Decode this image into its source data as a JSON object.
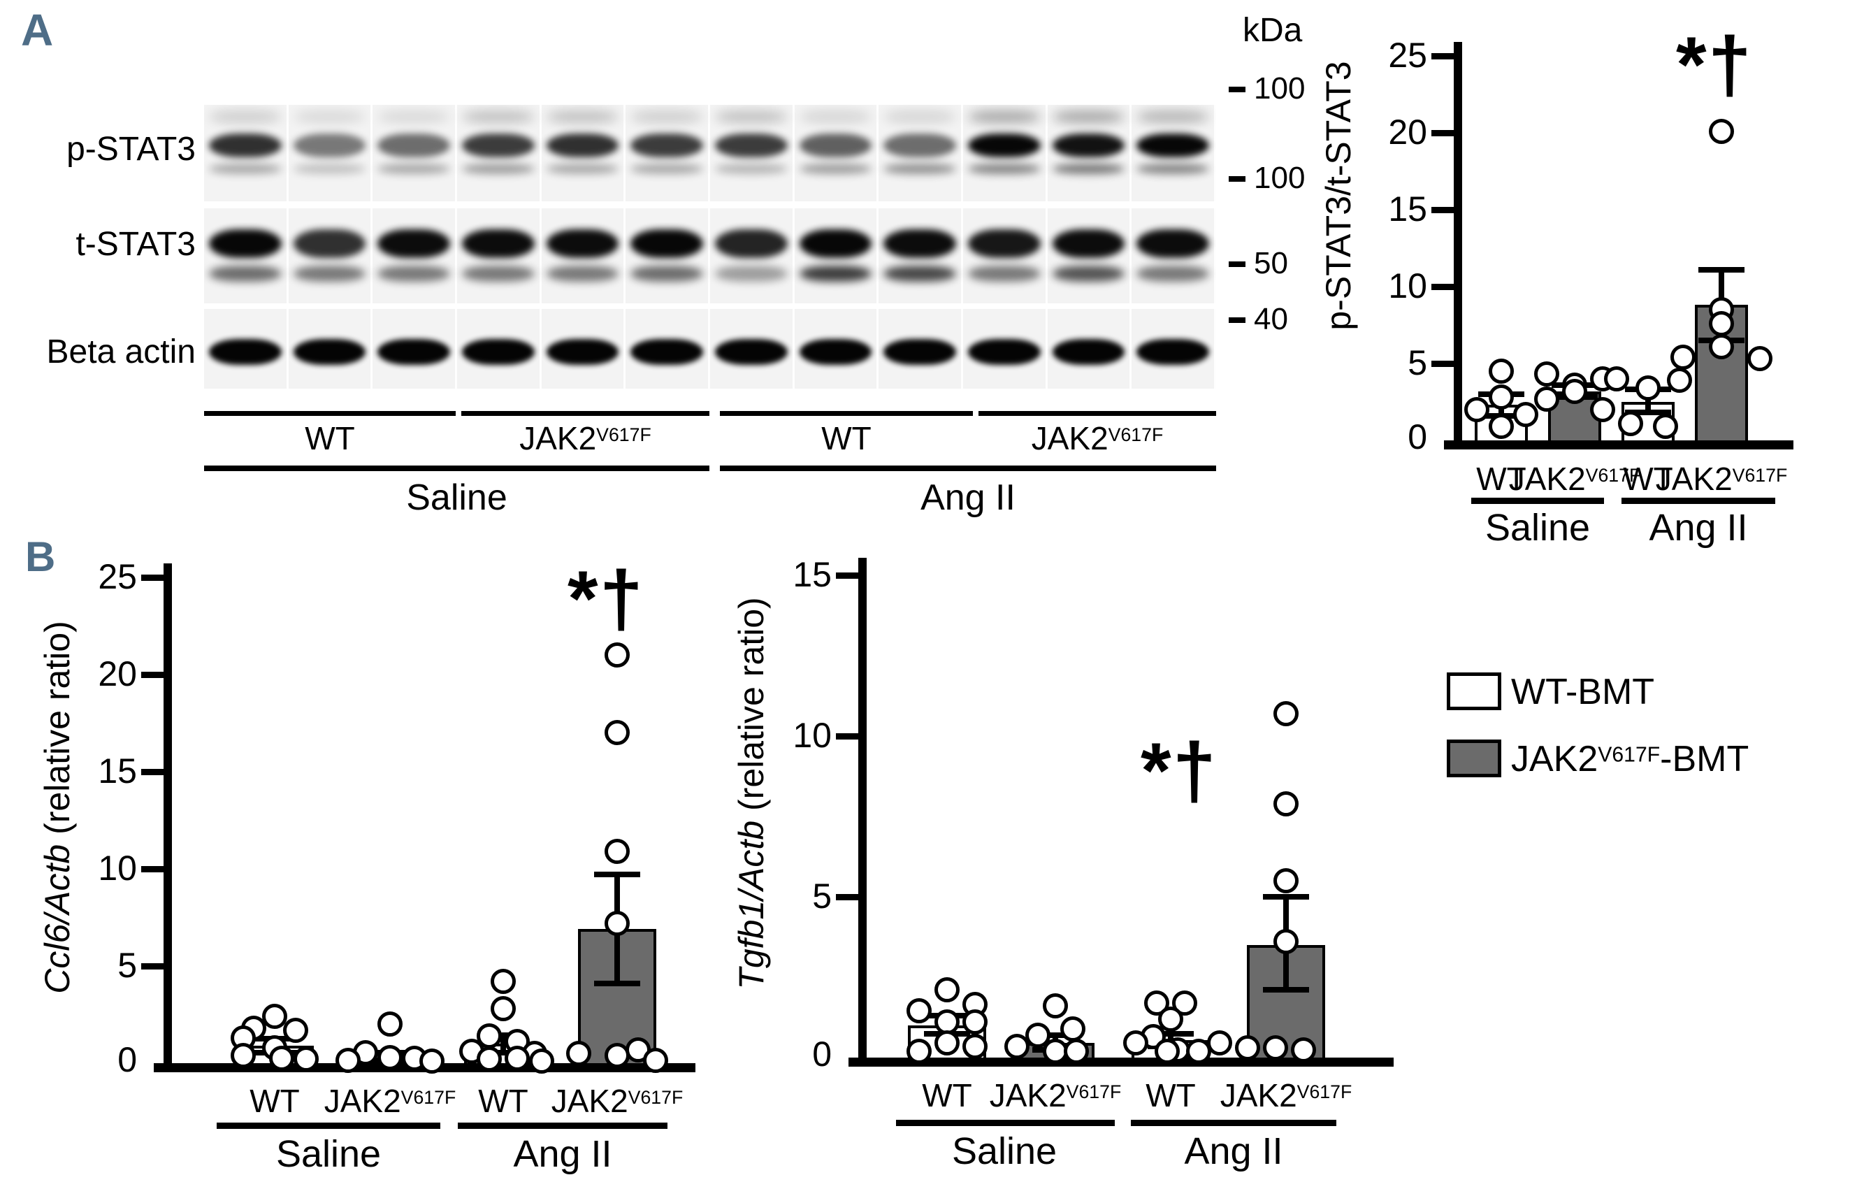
{
  "panel_a_label": "A",
  "panel_b_label": "B",
  "colors": {
    "bar_gray": "#6b6b6b",
    "bar_white": "#ffffff",
    "panel_letter": "#4e6d87"
  },
  "blot": {
    "row_labels": [
      "p-STAT3",
      "t-STAT3",
      "Beta actin"
    ],
    "kda_header": "kDa",
    "kda_markers": [
      "100",
      "100",
      "50",
      "40"
    ],
    "lane_group_labels": [
      {
        "pre": "WT",
        "sup": ""
      },
      {
        "pre": "JAK2",
        "sup": "V617F"
      },
      {
        "pre": "WT",
        "sup": ""
      },
      {
        "pre": "JAK2",
        "sup": "V617F"
      }
    ],
    "condition_labels": [
      "Saline",
      "Ang II"
    ],
    "strips": [
      {
        "label": "p-STAT3",
        "bands": {
          "smear": [
            0.15,
            0.1,
            0.1,
            0.2,
            0.2,
            0.15,
            0.2,
            0.12,
            0.12,
            0.3,
            0.3,
            0.25
          ],
          "main": [
            0.8,
            0.5,
            0.55,
            0.75,
            0.8,
            0.75,
            0.75,
            0.6,
            0.55,
            0.97,
            0.92,
            0.97
          ],
          "sub": [
            0.3,
            0.2,
            0.3,
            0.35,
            0.3,
            0.3,
            0.25,
            0.35,
            0.4,
            0.45,
            0.5,
            0.45
          ]
        }
      },
      {
        "label": "t-STAT3",
        "bands": {
          "main": [
            0.97,
            0.8,
            0.95,
            0.95,
            0.95,
            0.97,
            0.85,
            0.97,
            0.95,
            0.9,
            0.95,
            0.95
          ],
          "sub": [
            0.55,
            0.5,
            0.5,
            0.5,
            0.5,
            0.55,
            0.35,
            0.75,
            0.7,
            0.5,
            0.65,
            0.5
          ]
        }
      },
      {
        "label": "Beta actin",
        "bands": {
          "main": [
            0.98,
            0.98,
            0.98,
            0.98,
            0.98,
            0.98,
            0.98,
            0.98,
            0.98,
            0.98,
            0.98,
            0.98
          ]
        }
      }
    ]
  },
  "chart_data": [
    {
      "type": "bar",
      "title": "",
      "ylabel_italic": "",
      "ylabel_rest": "p-STAT3/t-STAT3",
      "ylim": [
        0,
        25
      ],
      "yticks": [
        0,
        5,
        10,
        15,
        20,
        25
      ],
      "grid": false,
      "categories": [
        {
          "pre": "WT",
          "sup": ""
        },
        {
          "pre": "JAK2",
          "sup": "V617F"
        },
        {
          "pre": "WT",
          "sup": ""
        },
        {
          "pre": "JAK2",
          "sup": "V617F"
        }
      ],
      "group_labels": [
        "Saline",
        "Ang II"
      ],
      "values": [
        2.3,
        3.2,
        2.5,
        8.8
      ],
      "errors": [
        [
          1.6,
          3.0
        ],
        [
          2.8,
          3.6
        ],
        [
          1.8,
          3.3
        ],
        [
          6.5,
          11.1
        ]
      ],
      "fills": [
        "white",
        "gray",
        "white",
        "gray"
      ],
      "points": [
        [
          4.5,
          2.8,
          2.0,
          1.7,
          0.9
        ],
        [
          4.3,
          4.0,
          3.6,
          3.2,
          2.7,
          2.0
        ],
        [
          4.0,
          3.9,
          3.4,
          1.1,
          0.9
        ],
        [
          20.1,
          8.5,
          7.6,
          6.1,
          5.4,
          5.3
        ]
      ],
      "point_dx": [
        [
          0,
          0,
          -35,
          35,
          0
        ],
        [
          -40,
          40,
          0,
          0,
          -40,
          40
        ],
        [
          -45,
          45,
          0,
          -25,
          25
        ],
        [
          0,
          0,
          0,
          0,
          -55,
          55
        ]
      ],
      "annotation": {
        "text": "*†",
        "bar": 3
      }
    },
    {
      "type": "bar",
      "title": "",
      "ylabel_italic": "Ccl6/Actb",
      "ylabel_rest": " (relative ratio)",
      "ylim": [
        0,
        25
      ],
      "yticks": [
        0,
        5,
        10,
        15,
        20,
        25
      ],
      "grid": false,
      "categories": [
        {
          "pre": "WT",
          "sup": ""
        },
        {
          "pre": "JAK2",
          "sup": "V617F"
        },
        {
          "pre": "WT",
          "sup": ""
        },
        {
          "pre": "JAK2",
          "sup": "V617F"
        }
      ],
      "group_labels": [
        "Saline",
        "Ang II"
      ],
      "values": [
        0.9,
        0.3,
        1.0,
        6.9
      ],
      "errors": [
        [
          0.55,
          1.25
        ],
        [
          0.15,
          0.55
        ],
        [
          0.55,
          1.45
        ],
        [
          4.1,
          9.7
        ]
      ],
      "fills": [
        "white",
        "gray",
        "white",
        "gray"
      ],
      "points": [
        [
          2.4,
          1.8,
          1.7,
          1.3,
          0.8,
          0.4,
          0.25,
          0.2
        ],
        [
          2.0,
          0.55,
          0.3,
          0.25,
          0.15,
          0.1
        ],
        [
          4.2,
          2.8,
          1.4,
          1.1,
          0.6,
          0.5,
          0.25,
          0.2,
          0.1
        ],
        [
          21.0,
          17.0,
          10.9,
          7.2,
          0.7,
          0.5,
          0.4,
          0.15
        ]
      ],
      "point_dx": [
        [
          0,
          -30,
          30,
          -45,
          0,
          -45,
          10,
          45
        ],
        [
          0,
          -35,
          0,
          35,
          -60,
          60
        ],
        [
          0,
          0,
          -20,
          20,
          -45,
          45,
          20,
          -20,
          55
        ],
        [
          0,
          0,
          0,
          0,
          30,
          -55,
          0,
          55
        ]
      ],
      "annotation": {
        "text": "*†",
        "bar": 3
      }
    },
    {
      "type": "bar",
      "title": "",
      "ylabel_italic": "Tgfb1/Actb",
      "ylabel_rest": " (relative ratio)",
      "ylim": [
        0,
        15
      ],
      "yticks": [
        0,
        5,
        10,
        15
      ],
      "grid": false,
      "categories": [
        {
          "pre": "WT",
          "sup": ""
        },
        {
          "pre": "JAK2",
          "sup": "V617F"
        },
        {
          "pre": "WT",
          "sup": ""
        },
        {
          "pre": "JAK2",
          "sup": "V617F"
        }
      ],
      "group_labels": [
        "Saline",
        "Ang II"
      ],
      "values": [
        1.0,
        0.45,
        0.55,
        3.5
      ],
      "errors": [
        [
          0.75,
          1.3
        ],
        [
          0.25,
          0.7
        ],
        [
          0.35,
          0.75
        ],
        [
          2.1,
          5.0
        ]
      ],
      "fills": [
        "white",
        "gray",
        "white",
        "gray"
      ],
      "points": [
        [
          2.1,
          1.65,
          1.45,
          1.1,
          1.1,
          0.45,
          0.35,
          0.2
        ],
        [
          1.6,
          0.9,
          0.7,
          0.35,
          0.2,
          0.2
        ],
        [
          1.7,
          1.7,
          1.2,
          0.65,
          0.45,
          0.25,
          0.2,
          0.2
        ],
        [
          10.7,
          7.9,
          5.5,
          3.6,
          0.45,
          0.3,
          0.3,
          0.25
        ]
      ],
      "point_dx": [
        [
          0,
          40,
          -40,
          0,
          40,
          0,
          40,
          -40
        ],
        [
          0,
          25,
          -25,
          -55,
          0,
          30
        ],
        [
          -20,
          20,
          0,
          -25,
          -50,
          10,
          40,
          -5
        ],
        [
          0,
          0,
          0,
          0,
          -95,
          -55,
          -15,
          25
        ]
      ],
      "annotation": {
        "text": "*†",
        "bar": 3
      }
    }
  ],
  "legend": {
    "items": [
      {
        "pre": "WT-BMT",
        "sup": "",
        "post": "",
        "swatch": "#ffffff"
      },
      {
        "pre": "JAK2",
        "sup": "V617F",
        "post": "-BMT",
        "swatch": "#6b6b6b"
      }
    ]
  }
}
